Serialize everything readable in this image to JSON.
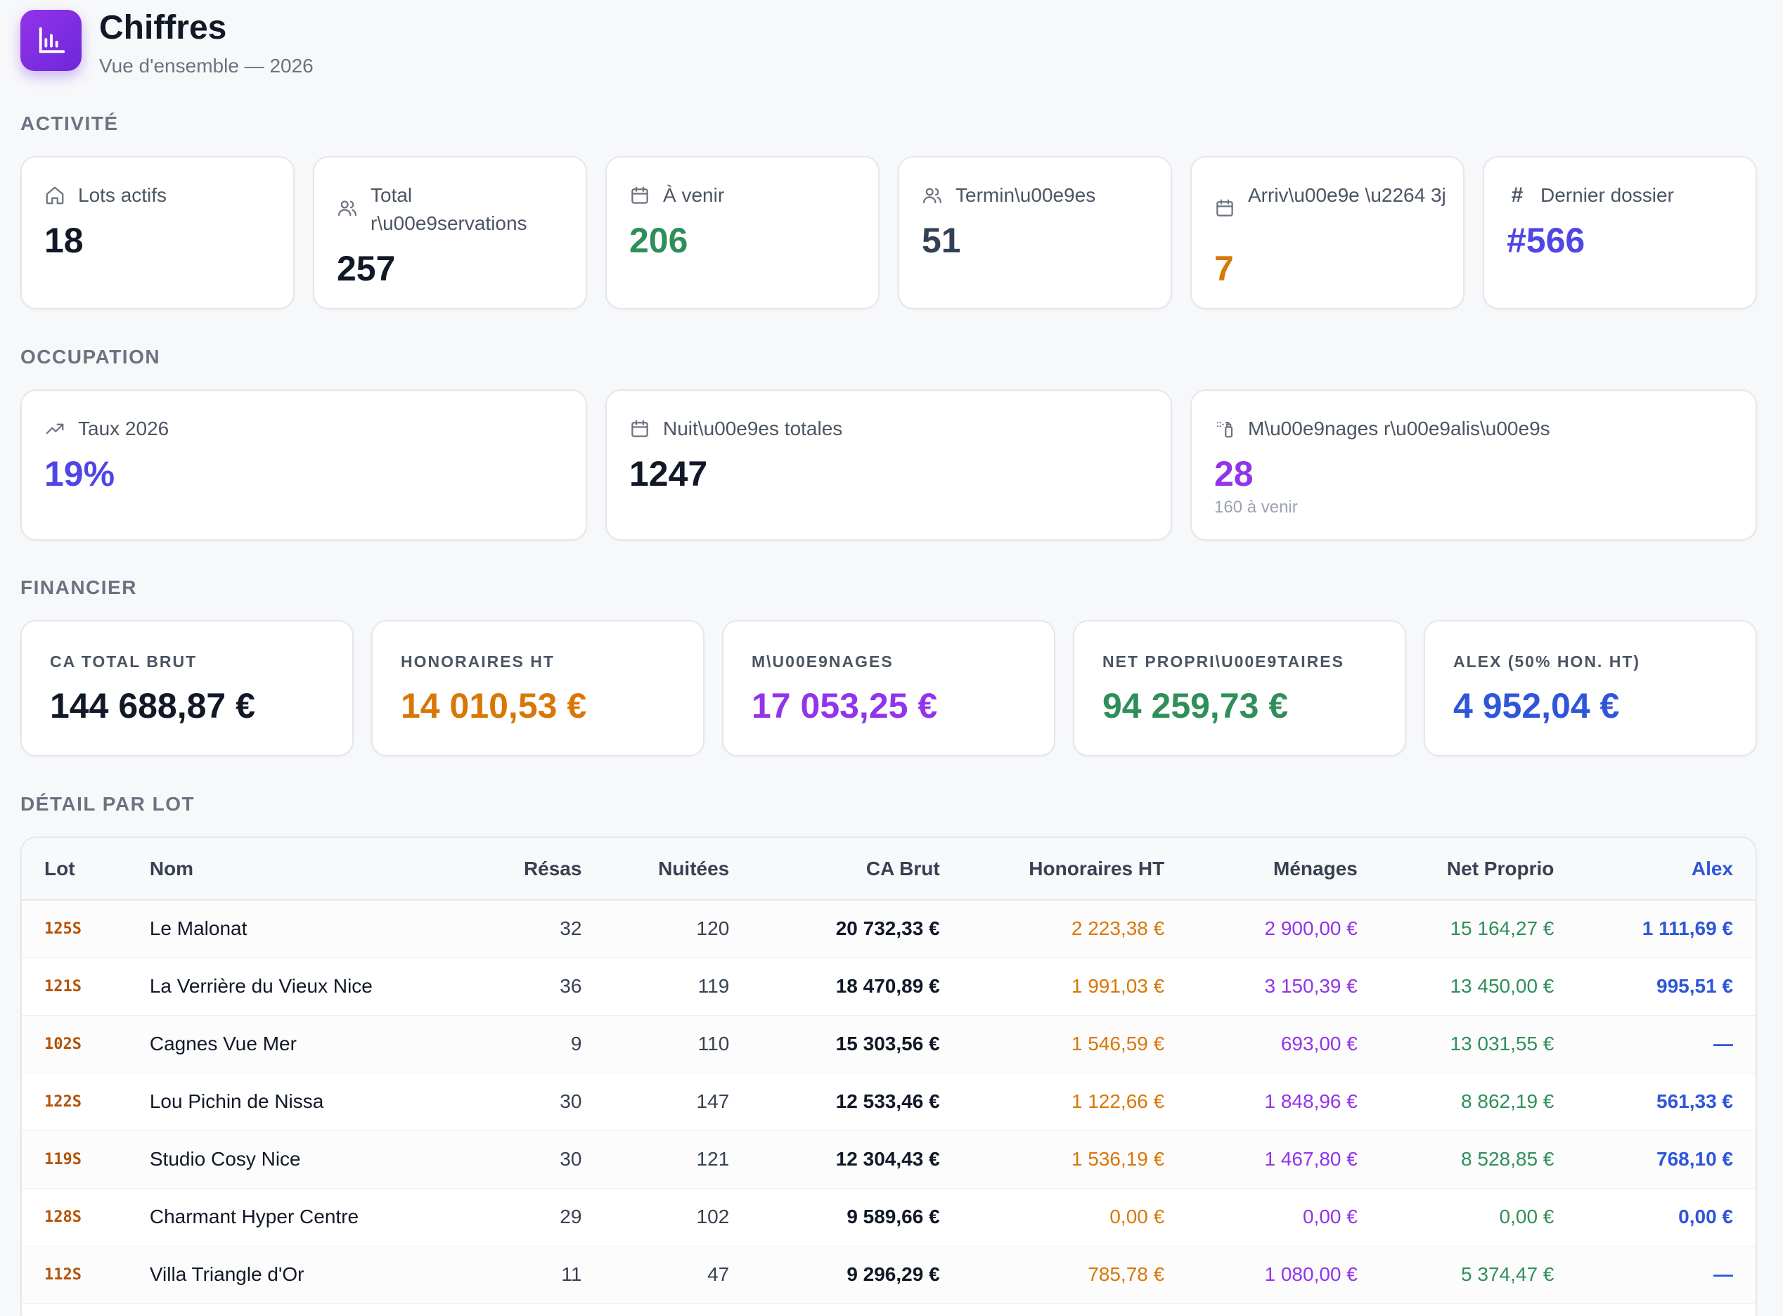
{
  "header": {
    "title": "Chiffres",
    "subtitle": "Vue d'ensemble — 2026",
    "icon": "bar-chart-icon",
    "accent": "#7c3aed"
  },
  "sections": {
    "activite": "ACTIVITÉ",
    "occupation": "OCCUPATION",
    "financier": "FINANCIER",
    "detail": "DÉTAIL PAR LOT"
  },
  "activite": {
    "lots_actifs": {
      "label": "Lots actifs",
      "value": "18",
      "icon": "home-icon"
    },
    "total_reservations": {
      "label": "Total r\\u00e9servations",
      "value": "257",
      "icon": "users-icon"
    },
    "a_venir": {
      "label": "À venir",
      "value": "206",
      "icon": "calendar-icon"
    },
    "terminees": {
      "label": "Termin\\u00e9es",
      "value": "51",
      "icon": "users-icon"
    },
    "arrivee": {
      "label": "Arriv\\u00e9e \\u2264 3j",
      "value": "7",
      "icon": "calendar-icon"
    },
    "dernier_dossier": {
      "label": "Dernier dossier",
      "value": "#566",
      "icon": "hash-icon"
    }
  },
  "occupation": {
    "taux": {
      "label": "Taux 2026",
      "value": "19%",
      "icon": "trending-up-icon"
    },
    "nuitees": {
      "label": "Nuit\\u00e9es totales",
      "value": "1247",
      "icon": "calendar-icon"
    },
    "menages": {
      "label": "M\\u00e9nages r\\u00e9alis\\u00e9s",
      "value": "28",
      "sub": "160 à venir",
      "icon": "spray-icon"
    }
  },
  "financier": {
    "ca_total": {
      "label": "CA TOTAL BRUT",
      "value": "144 688,87 €"
    },
    "honoraires": {
      "label": "HONORAIRES HT",
      "value": "14 010,53 €"
    },
    "menages": {
      "label": "M\\U00E9NAGES",
      "value": "17 053,25 €"
    },
    "net_proprio": {
      "label": "NET PROPRI\\U00E9TAIRES",
      "value": "94 259,73 €"
    },
    "alex": {
      "label": "ALEX (50% HON. HT)",
      "value": "4 952,04 €"
    }
  },
  "table": {
    "headers": {
      "lot": "Lot",
      "nom": "Nom",
      "resas": "Résas",
      "nuitees": "Nuitées",
      "ca_brut": "CA Brut",
      "honoraires": "Honoraires HT",
      "menages": "Ménages",
      "net": "Net Proprio",
      "alex": "Alex"
    },
    "rows": [
      {
        "lot": "125S",
        "nom": "Le Malonat",
        "resas": "32",
        "nuitees": "120",
        "ca": "20 732,33 €",
        "hon": "2 223,38 €",
        "men": "2 900,00 €",
        "net": "15 164,27 €",
        "alex": "1 111,69 €"
      },
      {
        "lot": "121S",
        "nom": "La Verrière du Vieux Nice",
        "resas": "36",
        "nuitees": "119",
        "ca": "18 470,89 €",
        "hon": "1 991,03 €",
        "men": "3 150,39 €",
        "net": "13 450,00 €",
        "alex": "995,51 €"
      },
      {
        "lot": "102S",
        "nom": "Cagnes Vue Mer",
        "resas": "9",
        "nuitees": "110",
        "ca": "15 303,56 €",
        "hon": "1 546,59 €",
        "men": "693,00 €",
        "net": "13 031,55 €",
        "alex": "—"
      },
      {
        "lot": "122S",
        "nom": "Lou Pichin de Nissa",
        "resas": "30",
        "nuitees": "147",
        "ca": "12 533,46 €",
        "hon": "1 122,66 €",
        "men": "1 848,96 €",
        "net": "8 862,19 €",
        "alex": "561,33 €"
      },
      {
        "lot": "119S",
        "nom": "Studio Cosy Nice",
        "resas": "30",
        "nuitees": "121",
        "ca": "12 304,43 €",
        "hon": "1 536,19 €",
        "men": "1 467,80 €",
        "net": "8 528,85 €",
        "alex": "768,10 €"
      },
      {
        "lot": "128S",
        "nom": "Charmant Hyper Centre",
        "resas": "29",
        "nuitees": "102",
        "ca": "9 589,66 €",
        "hon": "0,00 €",
        "men": "0,00 €",
        "net": "0,00 €",
        "alex": "0,00 €"
      },
      {
        "lot": "112S",
        "nom": "Villa Triangle d'Or",
        "resas": "11",
        "nuitees": "47",
        "ca": "9 296,29 €",
        "hon": "785,78 €",
        "men": "1 080,00 €",
        "net": "5 374,47 €",
        "alex": "—"
      }
    ]
  }
}
